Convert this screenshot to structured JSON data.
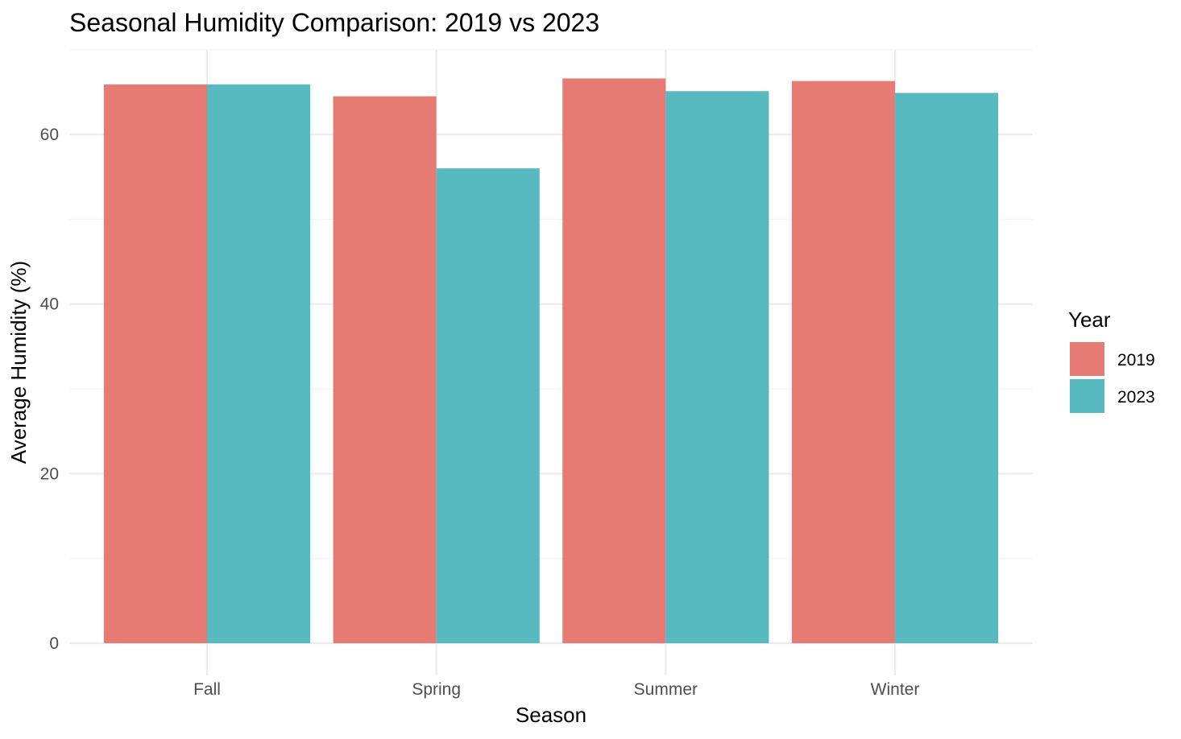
{
  "chart_data": {
    "type": "bar",
    "title": "Seasonal Humidity Comparison: 2019 vs 2023",
    "xlabel": "Season",
    "ylabel": "Average Humidity (%)",
    "categories": [
      "Fall",
      "Spring",
      "Summer",
      "Winter"
    ],
    "series": [
      {
        "name": "2019",
        "color": "#E67B73",
        "values": [
          65.9,
          64.5,
          66.6,
          66.3
        ]
      },
      {
        "name": "2023",
        "color": "#56BAC0",
        "values": [
          65.9,
          56.0,
          65.1,
          64.9
        ]
      }
    ],
    "ylim": [
      0,
      70
    ],
    "yticks": [
      0,
      20,
      40,
      60
    ],
    "grid": true,
    "legend": {
      "title": "Year",
      "position": "right"
    }
  }
}
